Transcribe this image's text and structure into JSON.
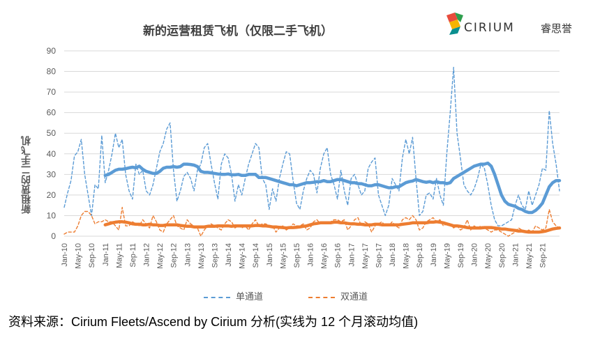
{
  "header": {
    "title": "新的运营租赁飞机（仅限二手飞机）",
    "logo_text": "CIRIUM",
    "logo_cn": "睿思誉"
  },
  "footer": {
    "source": "资料来源：Cirium Fleets/Ascend by Cirium 分析(实线为 12 个月滚动均值)"
  },
  "colors": {
    "narrow": "#5B9BD5",
    "wide": "#ED7D31",
    "grid": "#D9D9D9"
  },
  "chart_data": {
    "type": "line",
    "ylabel": "新租赁的二手飞机",
    "ylim": [
      0,
      90
    ],
    "yticks": [
      0,
      10,
      20,
      30,
      40,
      50,
      60,
      70,
      80,
      90
    ],
    "x_start": "Jan-10",
    "x_ticks": [
      "Jan-10",
      "May-10",
      "Sep-10",
      "Jan-11",
      "May-11",
      "Sep-11",
      "Jan-12",
      "May-12",
      "Sep-12",
      "Jan-13",
      "May-13",
      "Sep-13",
      "Jan-14",
      "May-14",
      "Sep-14",
      "Jan-15",
      "May-15",
      "Sep-15",
      "Jan-16",
      "May-16",
      "Sep-16",
      "Jan-17",
      "May-17",
      "Sep-17",
      "Jan-18",
      "May-18",
      "Sep-18",
      "Jan-19",
      "May-19",
      "Sep-19",
      "Jan-20",
      "May-20",
      "Sep-20",
      "Jan-21",
      "May-21",
      "Sep-21"
    ],
    "legend": [
      "单通道",
      "双通道"
    ],
    "series": [
      {
        "name": "单通道",
        "style": "dashed",
        "color": "#5B9BD5",
        "values": [
          14,
          21,
          27,
          39,
          41,
          47,
          30,
          20,
          10,
          25,
          23,
          49,
          26,
          32,
          40,
          50,
          43,
          47,
          30,
          22,
          18,
          35,
          30,
          32,
          22,
          20,
          25,
          33,
          41,
          45,
          52,
          55,
          32,
          17,
          22,
          29,
          31,
          28,
          22,
          32,
          35,
          43,
          45,
          35,
          26,
          18,
          35,
          40,
          38,
          30,
          17,
          25,
          20,
          28,
          35,
          40,
          45,
          43,
          28,
          25,
          13,
          23,
          17,
          28,
          35,
          41,
          40,
          27,
          16,
          13,
          22,
          28,
          32,
          30,
          21,
          33,
          40,
          43,
          30,
          25,
          18,
          32,
          22,
          15,
          28,
          30,
          25,
          20,
          22,
          33,
          36,
          38,
          20,
          15,
          10,
          15,
          28,
          25,
          22,
          38,
          47,
          40,
          48,
          28,
          10,
          12,
          20,
          21,
          18,
          28,
          20,
          15,
          40,
          60,
          82,
          50,
          38,
          25,
          22,
          20,
          23,
          28,
          35,
          33,
          25,
          15,
          8,
          5,
          5,
          6,
          7,
          8,
          15,
          20,
          15,
          13,
          22,
          15,
          20,
          25,
          33,
          32,
          61,
          45,
          35,
          22
        ]
      },
      {
        "name": "单通道 (12个月滚动均值)",
        "style": "solid",
        "color": "#5B9BD5",
        "smooth_from": 12,
        "values": [
          null,
          null,
          null,
          null,
          null,
          null,
          null,
          null,
          null,
          null,
          null,
          null,
          29.5,
          30,
          31,
          32,
          32.5,
          32.5,
          32.8,
          33.2,
          33.5,
          33.2,
          34,
          32.5,
          31.5,
          31,
          30.5,
          30.5,
          31.5,
          33,
          33.5,
          33.5,
          33.8,
          33.5,
          33.8,
          35,
          35,
          34.8,
          34.5,
          33.8,
          31.5,
          31,
          31,
          30.8,
          30.5,
          30.2,
          30,
          30,
          30.2,
          29.8,
          29.8,
          30,
          29.5,
          29.5,
          30,
          30,
          30,
          28.5,
          28.5,
          28.5,
          28,
          27.5,
          27,
          26.5,
          26,
          25.5,
          25,
          25,
          24.5,
          25,
          25.5,
          26,
          26,
          26.2,
          26.5,
          26.5,
          27,
          26.5,
          26.5,
          27,
          27.5,
          27.5,
          27,
          26.5,
          26,
          26,
          25.5,
          25.5,
          25,
          24.5,
          24.5,
          25,
          25,
          24.5,
          24,
          23.5,
          23.5,
          24,
          24,
          25,
          26,
          26.5,
          26.8,
          27.5,
          27,
          26.5,
          26.2,
          26.5,
          26,
          26.5,
          26,
          26,
          25.5,
          26,
          28,
          29,
          30,
          31,
          32,
          33,
          34,
          34.5,
          35,
          35,
          35.5,
          34,
          30,
          25,
          20,
          17,
          15.5,
          15,
          14.5,
          13.5,
          13,
          12,
          11.5,
          11.5,
          12.5,
          14,
          16,
          20,
          24,
          26,
          27,
          27
        ]
      },
      {
        "name": "双通道",
        "style": "dashed",
        "color": "#ED7D31",
        "values": [
          1,
          2,
          2,
          2,
          5,
          10,
          12,
          12,
          10,
          6,
          7,
          7,
          8,
          7,
          7,
          5,
          3,
          14,
          5,
          5,
          7,
          6,
          5,
          8,
          6,
          4,
          10,
          7,
          3,
          2,
          6,
          8,
          10,
          5,
          4,
          3,
          8,
          6,
          5,
          4,
          0,
          3,
          5,
          6,
          5,
          4,
          3,
          6,
          8,
          7,
          4,
          5,
          4,
          5,
          3,
          6,
          8,
          5,
          6,
          6,
          5,
          5,
          2,
          4,
          5,
          3,
          4,
          6,
          5,
          5,
          6,
          3,
          4,
          7,
          8,
          6,
          6,
          6,
          7,
          8,
          8,
          7,
          8,
          3,
          5,
          8,
          9,
          5,
          7,
          6,
          2,
          5,
          6,
          7,
          5,
          5,
          7,
          5,
          4,
          8,
          9,
          8,
          10,
          8,
          3,
          4,
          7,
          8,
          9,
          7,
          8,
          5,
          6,
          6,
          4,
          5,
          3,
          4,
          8,
          3,
          5,
          4,
          5,
          4,
          3,
          2,
          3,
          3,
          2,
          1,
          0,
          1,
          2,
          4,
          3,
          2,
          3,
          2,
          5,
          4,
          3,
          4,
          13,
          7,
          5,
          4
        ]
      },
      {
        "name": "双通道 (12个月滚动均值)",
        "style": "solid",
        "color": "#ED7D31",
        "values": [
          null,
          null,
          null,
          null,
          null,
          null,
          null,
          null,
          null,
          null,
          null,
          null,
          5.5,
          6,
          6.5,
          6.8,
          7,
          7,
          6.8,
          6.5,
          6,
          5.8,
          5.8,
          5.5,
          5.5,
          5.8,
          5.5,
          5.5,
          5.2,
          5.2,
          5.5,
          5.5,
          5.5,
          5.5,
          5.2,
          5,
          4.8,
          4.8,
          4.5,
          4.5,
          4.5,
          4.5,
          4.8,
          4.8,
          4.8,
          5,
          5,
          5,
          5,
          4.8,
          5,
          5,
          5,
          5,
          5,
          5,
          5.2,
          5.2,
          5,
          5,
          4.8,
          4.5,
          4.5,
          4.3,
          4.2,
          4,
          4.2,
          4.2,
          4.3,
          4.5,
          4.8,
          5,
          5.5,
          6,
          6.2,
          6.5,
          6.5,
          6.5,
          6.5,
          6.8,
          6.8,
          6.5,
          6.5,
          6.2,
          6,
          6,
          5.8,
          5.8,
          5.5,
          5.5,
          5.5,
          5.8,
          5.8,
          5.5,
          5.5,
          5.5,
          5.5,
          5.5,
          5.5,
          5.8,
          6,
          6.2,
          6.5,
          6.5,
          6.5,
          6.5,
          6.5,
          6.8,
          6.8,
          7,
          6.8,
          6.5,
          6,
          5.5,
          5,
          5,
          4.8,
          4.5,
          4.2,
          4,
          4,
          4,
          4,
          4.2,
          4.2,
          4.2,
          4,
          3.8,
          3.5,
          3.5,
          3.2,
          3,
          2.8,
          2.5,
          2.5,
          2.2,
          2,
          2,
          2,
          2,
          2.2,
          2.5,
          3,
          3.5,
          3.8,
          4
        ]
      }
    ]
  }
}
